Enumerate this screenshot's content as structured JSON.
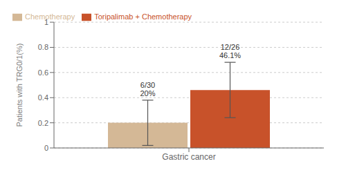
{
  "chart_data": {
    "type": "bar",
    "categories": [
      "Gastric cancer"
    ],
    "x_label": "Gastric cancer",
    "y_label": "Patients with TRG0/1(%)",
    "series": [
      {
        "name": "Chemotherapy",
        "color": "#d4b896",
        "values": [
          0.2
        ],
        "error": [
          0.18
        ],
        "annotations": [
          "6/30\n20%"
        ]
      },
      {
        "name": "Toripalimab + Chemotherapy",
        "color": "#c8522a",
        "values": [
          0.461
        ],
        "error": [
          0.22
        ],
        "annotations": [
          "12/26\n46.1%"
        ]
      }
    ],
    "ylim": [
      0,
      1
    ],
    "yticks": [
      0,
      0.2,
      0.4,
      0.6,
      0.8,
      1
    ],
    "grid": true,
    "legend": "upper left"
  }
}
